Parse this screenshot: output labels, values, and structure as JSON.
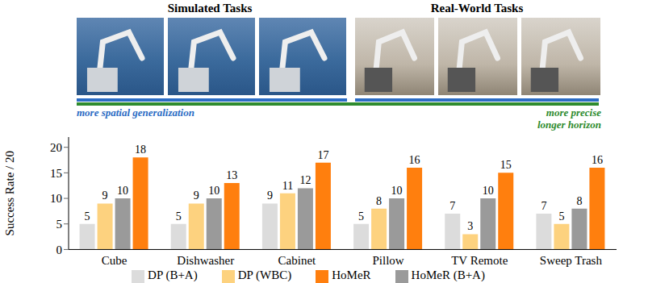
{
  "chart_data": {
    "type": "bar",
    "categories": [
      "Cube",
      "Dishwasher",
      "Cabinet",
      "Pillow",
      "TV Remote",
      "Sweep Trash"
    ],
    "series": [
      {
        "name": "DP (B+A)",
        "color": "#dcdcdc",
        "values": [
          5,
          5,
          9,
          5,
          7,
          7
        ]
      },
      {
        "name": "DP (WBC)",
        "color": "#fdd27f",
        "values": [
          9,
          9,
          11,
          8,
          3,
          5
        ]
      },
      {
        "name": "HoMeR (B+A)",
        "color": "#9a9a9a",
        "values": [
          10,
          10,
          12,
          10,
          10,
          8
        ]
      },
      {
        "name": "HoMeR",
        "color": "#ff7f0e",
        "values": [
          18,
          13,
          17,
          16,
          15,
          16
        ]
      }
    ],
    "ylim": [
      0,
      22
    ],
    "yticks": [
      0,
      5,
      10,
      15,
      20
    ],
    "y_label": "Success Rate / 20",
    "data_labels": true,
    "legend": "bottom",
    "grid": false
  },
  "header": {
    "sections": [
      "Simulated Tasks",
      "Real-World Tasks"
    ],
    "left_note": "more spatial generalization",
    "right_note": [
      "more precise",
      "longer horizon"
    ]
  }
}
